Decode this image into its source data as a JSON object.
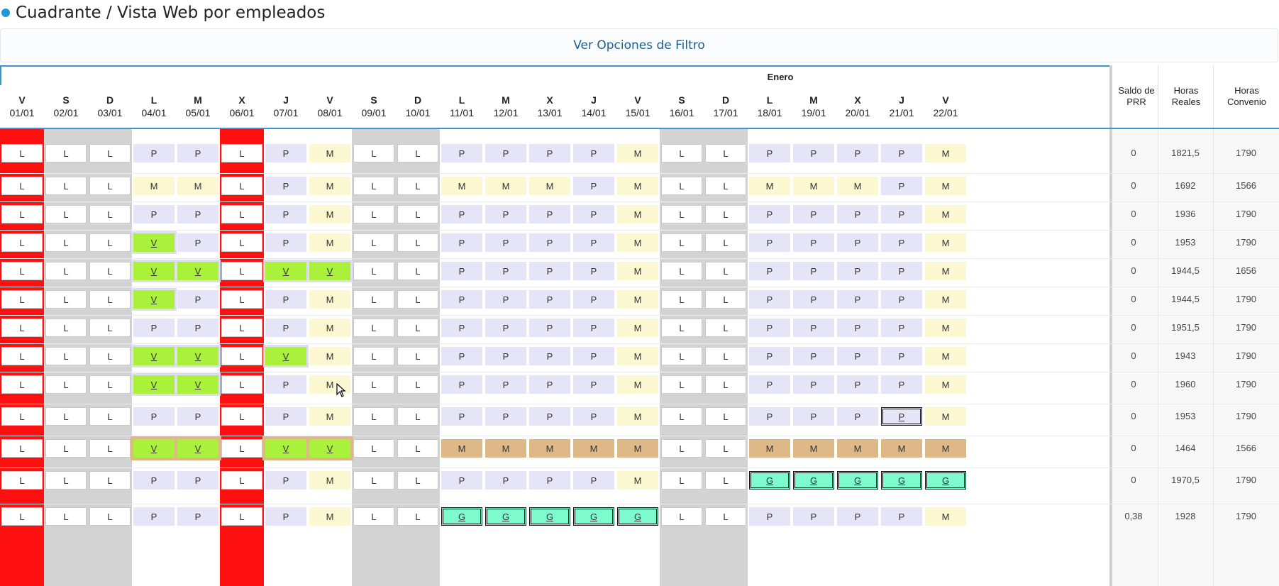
{
  "title": "Cuadrante / Vista Web por empleados",
  "filter_link": "Ver Opciones de Filtro",
  "month": "Enero",
  "days": [
    {
      "wd": "V",
      "date": "01/01",
      "type": "holiday"
    },
    {
      "wd": "S",
      "date": "02/01",
      "type": "weekend"
    },
    {
      "wd": "D",
      "date": "03/01",
      "type": "weekend"
    },
    {
      "wd": "L",
      "date": "04/01",
      "type": "work"
    },
    {
      "wd": "M",
      "date": "05/01",
      "type": "work"
    },
    {
      "wd": "X",
      "date": "06/01",
      "type": "holiday"
    },
    {
      "wd": "J",
      "date": "07/01",
      "type": "work"
    },
    {
      "wd": "V",
      "date": "08/01",
      "type": "work"
    },
    {
      "wd": "S",
      "date": "09/01",
      "type": "weekend"
    },
    {
      "wd": "D",
      "date": "10/01",
      "type": "weekend"
    },
    {
      "wd": "L",
      "date": "11/01",
      "type": "work"
    },
    {
      "wd": "M",
      "date": "12/01",
      "type": "work"
    },
    {
      "wd": "X",
      "date": "13/01",
      "type": "work"
    },
    {
      "wd": "J",
      "date": "14/01",
      "type": "work"
    },
    {
      "wd": "V",
      "date": "15/01",
      "type": "work"
    },
    {
      "wd": "S",
      "date": "16/01",
      "type": "weekend"
    },
    {
      "wd": "D",
      "date": "17/01",
      "type": "weekend"
    },
    {
      "wd": "L",
      "date": "18/01",
      "type": "work"
    },
    {
      "wd": "M",
      "date": "19/01",
      "type": "work"
    },
    {
      "wd": "X",
      "date": "20/01",
      "type": "work"
    },
    {
      "wd": "J",
      "date": "21/01",
      "type": "work"
    },
    {
      "wd": "V",
      "date": "22/01",
      "type": "work"
    }
  ],
  "summary_headers": [
    "Saldo de PRR",
    "Horas Reales",
    "Horas Convenio"
  ],
  "rows": [
    {
      "cells": [
        "L",
        "L",
        "L",
        "P",
        "P",
        "L",
        "P",
        "M",
        "L",
        "L",
        "P",
        "P",
        "P",
        "P",
        "M",
        "L",
        "L",
        "P",
        "P",
        "P",
        "P",
        "M"
      ],
      "saldo": "0",
      "reales": "1821,5",
      "convenio": "1790"
    },
    {
      "cells": [
        "L",
        "L",
        "L",
        "M",
        "M",
        "L",
        "P",
        "M",
        "L",
        "L",
        "M",
        "M",
        "M",
        "P",
        "M",
        "L",
        "L",
        "M",
        "M",
        "M",
        "P",
        "M"
      ],
      "saldo": "0",
      "reales": "1692",
      "convenio": "1566"
    },
    {
      "cells": [
        "L",
        "L",
        "L",
        "P",
        "P",
        "L",
        "P",
        "M",
        "L",
        "L",
        "P",
        "P",
        "P",
        "P",
        "M",
        "L",
        "L",
        "P",
        "P",
        "P",
        "P",
        "M"
      ],
      "saldo": "0",
      "reales": "1936",
      "convenio": "1790"
    },
    {
      "cells": [
        "L",
        "L",
        "L",
        "V",
        "P",
        "L",
        "P",
        "M",
        "L",
        "L",
        "P",
        "P",
        "P",
        "P",
        "M",
        "L",
        "L",
        "P",
        "P",
        "P",
        "P",
        "M"
      ],
      "saldo": "0",
      "reales": "1953",
      "convenio": "1790"
    },
    {
      "cells": [
        "L",
        "L",
        "L",
        "V",
        "V",
        "L",
        "V",
        "V",
        "L",
        "L",
        "P",
        "P",
        "P",
        "P",
        "M",
        "L",
        "L",
        "P",
        "P",
        "P",
        "P",
        "M"
      ],
      "saldo": "0",
      "reales": "1944,5",
      "convenio": "1656"
    },
    {
      "cells": [
        "L",
        "L",
        "L",
        "V",
        "P",
        "L",
        "P",
        "M",
        "L",
        "L",
        "P",
        "P",
        "P",
        "P",
        "M",
        "L",
        "L",
        "P",
        "P",
        "P",
        "P",
        "M"
      ],
      "saldo": "0",
      "reales": "1944,5",
      "convenio": "1790"
    },
    {
      "cells": [
        "L",
        "L",
        "L",
        "P",
        "P",
        "L",
        "P",
        "M",
        "L",
        "L",
        "P",
        "P",
        "P",
        "P",
        "M",
        "L",
        "L",
        "P",
        "P",
        "P",
        "P",
        "M"
      ],
      "saldo": "0",
      "reales": "1951,5",
      "convenio": "1790"
    },
    {
      "cells": [
        "L",
        "L",
        "L",
        "V",
        "V",
        "L",
        "V",
        "M",
        "L",
        "L",
        "P",
        "P",
        "P",
        "P",
        "M",
        "L",
        "L",
        "P",
        "P",
        "P",
        "P",
        "M"
      ],
      "saldo": "0",
      "reales": "1943",
      "convenio": "1790"
    },
    {
      "cells": [
        "L",
        "L",
        "L",
        "V",
        "V",
        "L",
        "P",
        "M",
        "L",
        "L",
        "P",
        "P",
        "P",
        "P",
        "M",
        "L",
        "L",
        "P",
        "P",
        "P",
        "P",
        "M"
      ],
      "saldo": "0",
      "reales": "1960",
      "convenio": "1790"
    },
    {
      "cells": [
        "L",
        "L",
        "L",
        "P",
        "P",
        "L",
        "P",
        "M",
        "L",
        "L",
        "P",
        "P",
        "P",
        "P",
        "M",
        "L",
        "L",
        "P",
        "P",
        "P",
        "P*",
        "M"
      ],
      "saldo": "0",
      "reales": "1953",
      "convenio": "1790"
    },
    {
      "cells": [
        "L",
        "L",
        "L",
        "V!",
        "V!",
        "L",
        "V!",
        "V!",
        "L",
        "L",
        "M!",
        "M!",
        "M!",
        "M!",
        "M!",
        "L",
        "L",
        "M!",
        "M!",
        "M!",
        "M!",
        "M!"
      ],
      "saldo": "0",
      "reales": "1464",
      "convenio": "1566"
    },
    {
      "cells": [
        "L",
        "L",
        "L",
        "P",
        "P",
        "L",
        "P",
        "M",
        "L",
        "L",
        "P",
        "P",
        "P",
        "P",
        "M",
        "L",
        "L",
        "G",
        "G",
        "G",
        "G",
        "G"
      ],
      "saldo": "0",
      "reales": "1970,5",
      "convenio": "1790"
    },
    {
      "cells": [
        "L",
        "L",
        "L",
        "P",
        "P",
        "L",
        "P",
        "M",
        "L",
        "L",
        "G",
        "G",
        "G",
        "G",
        "G",
        "L",
        "L",
        "P",
        "P",
        "P",
        "P",
        "M"
      ],
      "saldo": "0,38",
      "reales": "1928",
      "convenio": "1790"
    }
  ],
  "colors": {
    "accent": "#3a97cd",
    "holiday": "#ff1010",
    "weekend": "#d3d3d3",
    "vacation": "#a9f13a",
    "shift_p": "#e5e5f7",
    "shift_m": "#fbf8d2",
    "other": "#deb886",
    "g_shift": "#7dfbcf",
    "title_dot": "#1f9ad6"
  }
}
